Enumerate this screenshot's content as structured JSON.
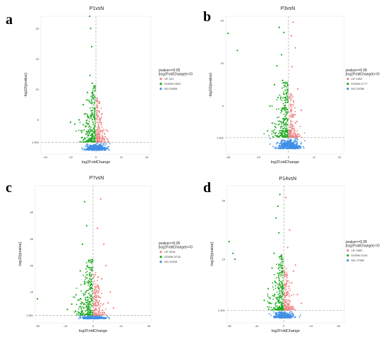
{
  "colors": {
    "up": "#f08080",
    "down": "#1aa81a",
    "no": "#3d8fe6",
    "guide": "#9a9a9a"
  },
  "chart_data": [
    {
      "type": "scatter",
      "panel_letter": "a",
      "title": "P1vsN",
      "xlabel": "log2FoldChange",
      "ylabel": "-log10(pvalue)",
      "xlim": [
        -26,
        26
      ],
      "ylim": [
        -0.6,
        22
      ],
      "xticks": [
        -24,
        -12,
        0,
        12,
        24
      ],
      "yticks": [
        1.301,
        5,
        10,
        15,
        20
      ],
      "ytick_labels": [
        "1.301",
        "5",
        "10",
        "15",
        "20"
      ],
      "legend": {
        "title": "pvalue<=0.05\n|log2FoldChange|>=0",
        "entries": [
          {
            "label": "UP 421",
            "color": "#f08080"
          },
          {
            "label": "DOWN 1953",
            "color": "#1aa81a"
          },
          {
            "label": "NO 20909",
            "color": "#3d8fe6"
          }
        ]
      },
      "series": [
        {
          "name": "UP",
          "points": [
            [
              0.8,
              1.6
            ],
            [
              1.5,
              2.2
            ],
            [
              2.4,
              3.1
            ],
            [
              1.1,
              4.0
            ],
            [
              3.2,
              2.0
            ],
            [
              0.6,
              3.4
            ],
            [
              4.1,
              2.7
            ],
            [
              2.0,
              5.1
            ],
            [
              1.3,
              2.8
            ],
            [
              5.0,
              3.3
            ]
          ]
        },
        {
          "name": "DOWN",
          "points": [
            [
              -3,
              22
            ],
            [
              -2.5,
              20
            ],
            [
              -2,
              17
            ],
            [
              -1.8,
              11
            ],
            [
              -4,
              9.5
            ],
            [
              -6,
              7.5
            ],
            [
              -8,
              5
            ],
            [
              -10,
              4.3
            ],
            [
              -5,
              6
            ],
            [
              -3,
              8
            ],
            [
              -1.5,
              9
            ],
            [
              -2.2,
              6.5
            ],
            [
              -7,
              3.2
            ],
            [
              -4.5,
              4.5
            ],
            [
              -1,
              3
            ],
            [
              -3.5,
              2.4
            ],
            [
              -0.8,
              5.8
            ],
            [
              -2.8,
              12.3
            ],
            [
              -12,
              4.6
            ],
            [
              -6.5,
              2.1
            ]
          ]
        }
      ],
      "notes": "NO points: dense blue cloud near x≈0, y<1.3"
    },
    {
      "type": "scatter",
      "panel_letter": "b",
      "title": "P3vsN",
      "xlabel": "log2FoldChange",
      "ylabel": "-log10(pvalue)",
      "xlim": [
        -27,
        24
      ],
      "ylim": [
        -0.6,
        15.5
      ],
      "xticks": [
        -26,
        -13,
        0,
        11,
        22
      ],
      "yticks": [
        1.301,
        5,
        10,
        15
      ],
      "ytick_labels": [
        "1.301",
        "5",
        "10",
        "15"
      ],
      "legend": {
        "title": "pvalue<=0.05\n|log2FoldChange|>=0",
        "entries": [
          {
            "label": "UP 1052",
            "color": "#f08080"
          },
          {
            "label": "DOWN 1777",
            "color": "#1aa81a"
          },
          {
            "label": "NO 20256",
            "color": "#3d8fe6"
          }
        ]
      },
      "series": [
        {
          "name": "UP",
          "points": [
            [
              2.0,
              14.8
            ],
            [
              1.2,
              13.2
            ],
            [
              3.0,
              11.8
            ],
            [
              1.5,
              9.6
            ],
            [
              4.0,
              7.0
            ],
            [
              2.2,
              5.5
            ],
            [
              3.6,
              3.2
            ],
            [
              5.5,
              4.5
            ],
            [
              1.0,
              2.5
            ],
            [
              2.8,
              4.0
            ]
          ]
        },
        {
          "name": "DOWN",
          "points": [
            [
              -26,
              13.5
            ],
            [
              -22,
              11.5
            ],
            [
              -4,
              14.2
            ],
            [
              -2,
              13.6
            ],
            [
              -3,
              11.0
            ],
            [
              -5,
              9.7
            ],
            [
              -6,
              7.5
            ],
            [
              -8,
              5.0
            ],
            [
              -4.5,
              6.0
            ],
            [
              -2.5,
              8.0
            ],
            [
              -7,
              3.0
            ],
            [
              -3,
              4.5
            ],
            [
              -9,
              2.1
            ],
            [
              -1.5,
              3.5
            ],
            [
              -5.5,
              2.5
            ]
          ]
        }
      ],
      "notes": "NO points: dense blue cloud near x≈0, y<1.3"
    },
    {
      "type": "scatter",
      "panel_letter": "c",
      "title": "P7vsN",
      "xlabel": "log2FoldChange",
      "ylabel": "-log10(pvalue)",
      "xlim": [
        -27,
        27
      ],
      "ylim": [
        -1.5,
        50
      ],
      "xticks": [
        -26,
        -13,
        0,
        13,
        26
      ],
      "yticks": [
        1.301,
        10,
        20,
        30,
        40
      ],
      "ytick_labels": [
        "1.301",
        "10",
        "20",
        "30",
        "40"
      ],
      "legend": {
        "title": "pvalue<=0.05\n|log2FoldChange|>=0",
        "entries": [
          {
            "label": "UP 3215",
            "color": "#f08080"
          },
          {
            "label": "DOWN 3716",
            "color": "#1aa81a"
          },
          {
            "label": "NO 19233",
            "color": "#3d8fe6"
          }
        ]
      },
      "series": [
        {
          "name": "UP",
          "points": [
            [
              3.5,
              45.0
            ],
            [
              2.0,
              34.0
            ],
            [
              5.0,
              28.0
            ],
            [
              6.0,
              20.0
            ],
            [
              4.0,
              15.0
            ],
            [
              8.0,
              10.0
            ],
            [
              2.5,
              12.0
            ],
            [
              7.0,
              6.0
            ],
            [
              1.5,
              8.0
            ],
            [
              9.5,
              4.0
            ]
          ]
        },
        {
          "name": "DOWN",
          "points": [
            [
              -26,
              7.5
            ],
            [
              -4,
              44.0
            ],
            [
              -3,
              35.0
            ],
            [
              -5,
              28.0
            ],
            [
              -2,
              22.0
            ],
            [
              -6,
              18.0
            ],
            [
              -4,
              14.0
            ],
            [
              -8,
              9.0
            ],
            [
              -3,
              10.5
            ],
            [
              -10,
              5.5
            ],
            [
              -7,
              7.0
            ],
            [
              -2,
              5.0
            ],
            [
              -12,
              3.5
            ],
            [
              -5,
              3.0
            ],
            [
              -1,
              7.5
            ]
          ]
        }
      ],
      "notes": "NO points: dense blue cloud near x≈0, y<1.3"
    },
    {
      "type": "scatter",
      "panel_letter": "d",
      "title": "P14vsN",
      "xlabel": "log2FoldChange",
      "ylabel": "-log10(pvalue)",
      "xlim": [
        -29,
        31
      ],
      "ylim": [
        -0.8,
        22.5
      ],
      "xticks": [
        -28,
        -14,
        0,
        14,
        28
      ],
      "yticks": [
        1.301,
        10,
        20
      ],
      "ytick_labels": [
        "1.301",
        "10",
        "20"
      ],
      "legend": {
        "title": "pvalue<=0.05\n|log2FoldChange|>=0",
        "entries": [
          {
            "label": "UP 2459",
            "color": "#f08080"
          },
          {
            "label": "DOWN 3134",
            "color": "#1aa81a"
          },
          {
            "label": "NO 17983",
            "color": "#3d8fe6"
          }
        ]
      },
      "series": [
        {
          "name": "UP",
          "points": [
            [
              1.0,
              20.5
            ],
            [
              3.0,
              15.0
            ],
            [
              2.0,
              12.0
            ],
            [
              5.0,
              8.0
            ],
            [
              4.0,
              6.0
            ],
            [
              7.0,
              4.0
            ],
            [
              6.0,
              9.0
            ],
            [
              2.5,
              3.0
            ],
            [
              9.0,
              2.5
            ],
            [
              1.5,
              6.0
            ]
          ]
        },
        {
          "name": "DOWN",
          "points": [
            [
              -28,
              13.0
            ],
            [
              -26,
              11.0
            ],
            [
              -25,
              10.0
            ],
            [
              -2,
              21.0
            ],
            [
              -3,
              19.0
            ],
            [
              -4,
              17.0
            ],
            [
              -2.5,
              14.5
            ],
            [
              -5,
              11.0
            ],
            [
              -6,
              8.5
            ],
            [
              -8,
              5.0
            ],
            [
              -4,
              6.0
            ],
            [
              -10,
              3.0
            ],
            [
              -3,
              3.5
            ],
            [
              -7,
              2.5
            ],
            [
              -1.5,
              9.0
            ]
          ]
        }
      ],
      "notes": "NO points: dense blue cloud near x≈0, y<1.3"
    }
  ]
}
